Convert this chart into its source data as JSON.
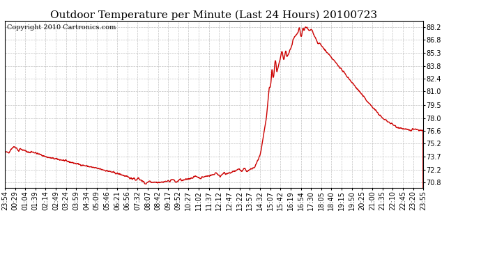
{
  "title": "Outdoor Temperature per Minute (Last 24 Hours) 20100723",
  "copyright_text": "Copyright 2010 Cartronics.com",
  "line_color": "#cc0000",
  "background_color": "#ffffff",
  "plot_bg_color": "#ffffff",
  "grid_color": "#bbbbbb",
  "yticks": [
    70.8,
    72.2,
    73.7,
    75.2,
    76.6,
    78.0,
    79.5,
    81.0,
    82.4,
    83.8,
    85.3,
    86.8,
    88.2
  ],
  "ylim": [
    70.2,
    88.9
  ],
  "xtick_labels": [
    "23:54",
    "00:29",
    "01:04",
    "01:39",
    "02:14",
    "02:49",
    "03:24",
    "03:59",
    "04:34",
    "05:09",
    "05:46",
    "06:21",
    "06:56",
    "07:32",
    "08:07",
    "08:42",
    "09:17",
    "09:52",
    "10:27",
    "11:02",
    "11:37",
    "12:12",
    "12:47",
    "13:22",
    "13:57",
    "14:32",
    "15:07",
    "15:42",
    "16:19",
    "16:54",
    "17:30",
    "18:05",
    "18:40",
    "19:15",
    "19:50",
    "20:25",
    "21:00",
    "21:35",
    "22:10",
    "22:45",
    "23:20",
    "23:55"
  ],
  "title_fontsize": 11,
  "copyright_fontsize": 7,
  "tick_fontsize": 7,
  "line_width": 1.0,
  "fig_width": 6.9,
  "fig_height": 3.75,
  "dpi": 100
}
